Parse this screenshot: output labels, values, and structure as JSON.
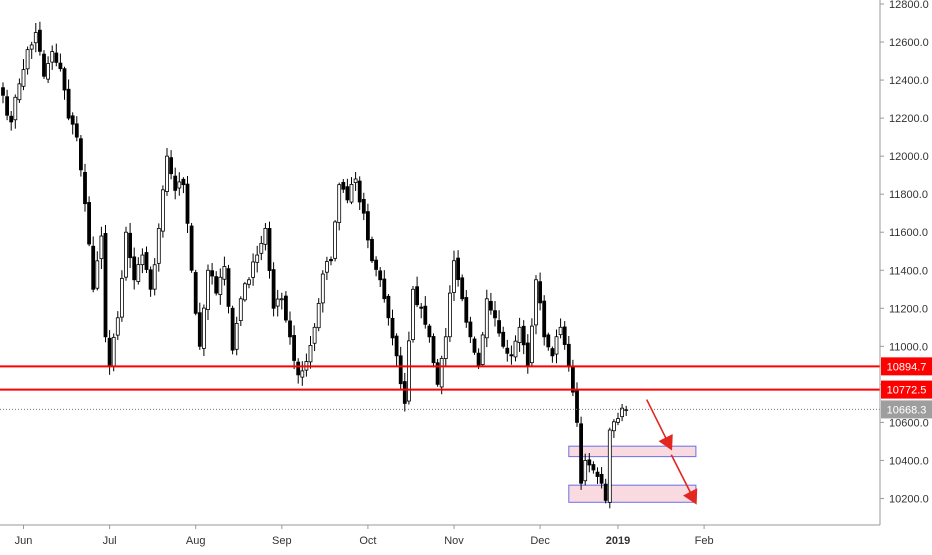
{
  "chart_data": {
    "type": "candlestick",
    "colors": {
      "candle": "#000000",
      "level_line": "#ff0000",
      "level_badge_bg": "#ff0000",
      "level_badge_text": "#ffffff",
      "last_price_badge_bg": "#9e9e9e",
      "last_price_badge_text": "#ffffff",
      "zone_fill": "#f8d3dc",
      "zone_border": "#6a6ee6",
      "arrow": "#e3261f",
      "axis_text": "#333333",
      "axis_line": "#999999"
    },
    "y_axis": {
      "range": [
        10050,
        12800
      ],
      "ticks": [
        "10200.0",
        "10400.0",
        "10600.0",
        "10800.0",
        "11000.0",
        "11200.0",
        "11400.0",
        "11600.0",
        "11800.0",
        "12000.0",
        "12200.0",
        "12400.0",
        "12600.0",
        "12800.0"
      ],
      "tick_values": [
        10200,
        10400,
        10600,
        10800,
        11000,
        11200,
        11400,
        11600,
        11800,
        12000,
        12200,
        12400,
        12600,
        12800
      ]
    },
    "x_axis": {
      "labels": [
        "Jun",
        "Jul",
        "Aug",
        "Sep",
        "Oct",
        "Nov",
        "Dec",
        "2019",
        "Feb"
      ],
      "bold_labels": [
        "2019"
      ],
      "label_bar_index": [
        5,
        26,
        47,
        68,
        89,
        110,
        131,
        150,
        171
      ],
      "total_bars": 186
    },
    "levels": [
      {
        "label": "10894.7",
        "value": 10894.7
      },
      {
        "label": "10772.5",
        "value": 10772.5
      }
    ],
    "last_price": {
      "label": "10668.3",
      "value": 10668.3
    },
    "zones": [
      {
        "y_range": [
          10420,
          10475
        ],
        "bar_range": [
          138,
          169
        ]
      },
      {
        "y_range": [
          10180,
          10270
        ],
        "bar_range": [
          138,
          169
        ]
      }
    ],
    "arrows": [
      {
        "from": [
          157,
          10720
        ],
        "to": [
          163,
          10460
        ]
      },
      {
        "from": [
          163,
          10430
        ],
        "to": [
          169,
          10175
        ]
      }
    ],
    "close_anchors": [
      [
        0,
        12320
      ],
      [
        2,
        12180
      ],
      [
        4,
        12380
      ],
      [
        6,
        12560
      ],
      [
        8,
        12650
      ],
      [
        10,
        12420
      ],
      [
        12,
        12550
      ],
      [
        14,
        12460
      ],
      [
        16,
        12200
      ],
      [
        18,
        12100
      ],
      [
        20,
        11750
      ],
      [
        22,
        11300
      ],
      [
        24,
        11580
      ],
      [
        25,
        11050
      ],
      [
        26,
        10900
      ],
      [
        28,
        11150
      ],
      [
        30,
        11600
      ],
      [
        32,
        11350
      ],
      [
        34,
        11480
      ],
      [
        36,
        11300
      ],
      [
        38,
        11620
      ],
      [
        40,
        12000
      ],
      [
        42,
        11820
      ],
      [
        44,
        11850
      ],
      [
        46,
        11400
      ],
      [
        48,
        11000
      ],
      [
        50,
        11400
      ],
      [
        52,
        11280
      ],
      [
        54,
        11420
      ],
      [
        56,
        10980
      ],
      [
        58,
        11250
      ],
      [
        60,
        11350
      ],
      [
        62,
        11480
      ],
      [
        64,
        11620
      ],
      [
        66,
        11200
      ],
      [
        68,
        11250
      ],
      [
        70,
        11050
      ],
      [
        72,
        10850
      ],
      [
        74,
        10920
      ],
      [
        76,
        11100
      ],
      [
        78,
        11380
      ],
      [
        80,
        11450
      ],
      [
        82,
        11850
      ],
      [
        84,
        11770
      ],
      [
        86,
        11880
      ],
      [
        88,
        11700
      ],
      [
        90,
        11450
      ],
      [
        92,
        11350
      ],
      [
        94,
        11150
      ],
      [
        96,
        10950
      ],
      [
        98,
        10700
      ],
      [
        100,
        11300
      ],
      [
        102,
        11200
      ],
      [
        104,
        11050
      ],
      [
        106,
        10800
      ],
      [
        108,
        11050
      ],
      [
        110,
        11450
      ],
      [
        112,
        11250
      ],
      [
        114,
        11050
      ],
      [
        116,
        10900
      ],
      [
        118,
        11250
      ],
      [
        120,
        11150
      ],
      [
        122,
        11000
      ],
      [
        124,
        10950
      ],
      [
        126,
        11100
      ],
      [
        128,
        10900
      ],
      [
        130,
        11350
      ],
      [
        132,
        11050
      ],
      [
        134,
        10950
      ],
      [
        136,
        11100
      ],
      [
        138,
        10900
      ],
      [
        140,
        10600
      ],
      [
        141,
        10280
      ],
      [
        142,
        10400
      ],
      [
        144,
        10350
      ],
      [
        146,
        10280
      ],
      [
        147,
        10190
      ],
      [
        148,
        10560
      ],
      [
        150,
        10620
      ],
      [
        152,
        10668
      ]
    ]
  }
}
